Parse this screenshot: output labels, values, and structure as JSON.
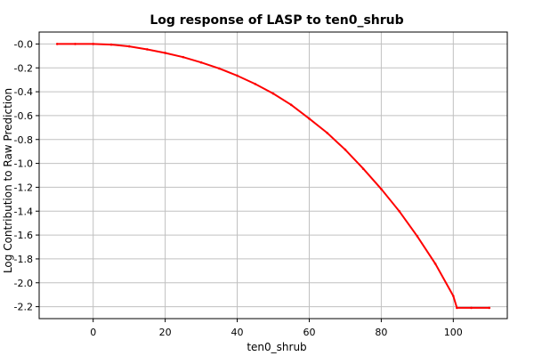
{
  "chart_data": {
    "type": "line",
    "title": "Log response of LASP to ten0_shrub",
    "xlabel": "ten0_shrub",
    "ylabel": "Log Contribution to Raw Prediction",
    "xlim": [
      -15,
      115
    ],
    "ylim": [
      -2.3,
      0.1
    ],
    "xticks": [
      0,
      20,
      40,
      60,
      80,
      100
    ],
    "xtick_labels": [
      "0",
      "20",
      "40",
      "60",
      "80",
      "100"
    ],
    "yticks": [
      0.0,
      -0.2,
      -0.4,
      -0.6,
      -0.8,
      -1.0,
      -1.2,
      -1.4,
      -1.6,
      -1.8,
      -2.0,
      -2.2
    ],
    "ytick_labels": [
      "-0.0",
      "-0.2",
      "-0.4",
      "-0.6",
      "-0.8",
      "-1.0",
      "-1.2",
      "-1.4",
      "-1.6",
      "-1.8",
      "-2.0",
      "-2.2"
    ],
    "grid": true,
    "series": [
      {
        "color": "#ff0000",
        "x": [
          -10,
          -5,
          0,
          5,
          10,
          15,
          20,
          25,
          30,
          35,
          40,
          45,
          50,
          55,
          60,
          65,
          70,
          75,
          80,
          85,
          90,
          95,
          100,
          101,
          105,
          110
        ],
        "y": [
          0.0,
          0.0,
          0.0,
          -0.005,
          -0.02,
          -0.045,
          -0.075,
          -0.11,
          -0.155,
          -0.205,
          -0.265,
          -0.335,
          -0.415,
          -0.51,
          -0.625,
          -0.745,
          -0.885,
          -1.045,
          -1.215,
          -1.4,
          -1.61,
          -1.84,
          -2.11,
          -2.21,
          -2.21,
          -2.21
        ]
      }
    ]
  }
}
